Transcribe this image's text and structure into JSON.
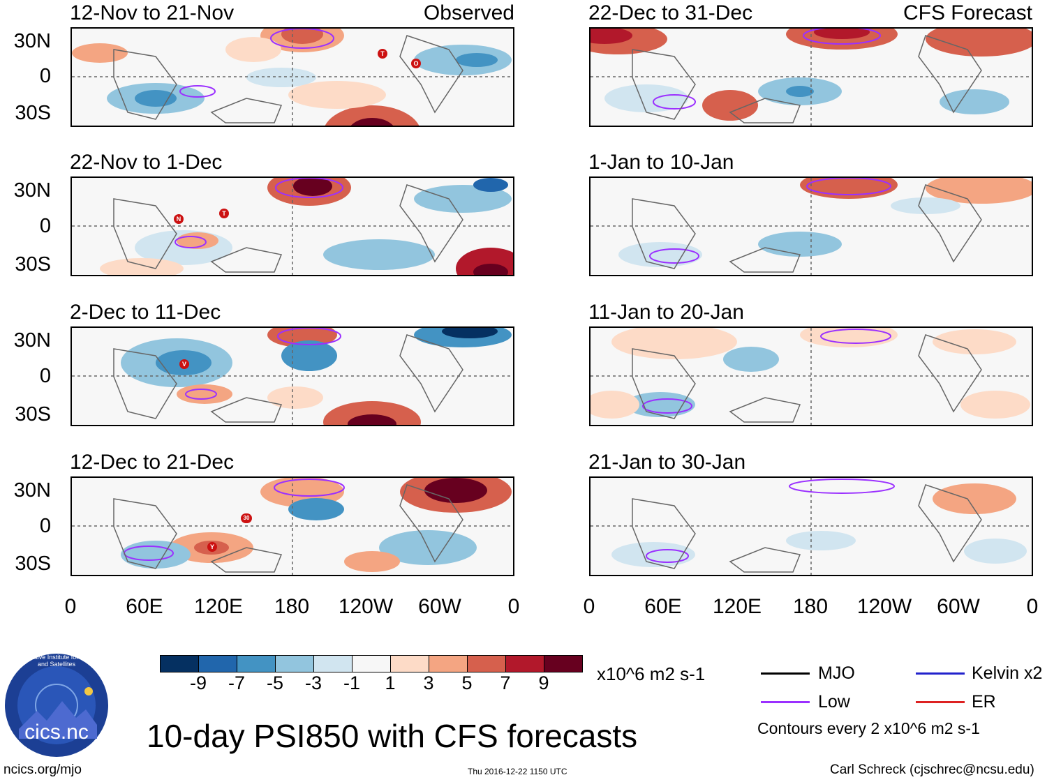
{
  "panel_labels": {
    "observed": "Observed",
    "forecast": "CFS Forecast"
  },
  "lat_labels": [
    "30N",
    "0",
    "30S"
  ],
  "lon_labels": [
    "0",
    "60E",
    "120E",
    "180",
    "120W",
    "60W",
    "0"
  ],
  "panels": [
    {
      "title": "12-Nov to 21-Nov",
      "storms": [
        "T",
        "O"
      ]
    },
    {
      "title": "22-Nov to 1-Dec",
      "storms": [
        "N",
        "T"
      ]
    },
    {
      "title": "2-Dec to 11-Dec",
      "storms": [
        "V"
      ]
    },
    {
      "title": "12-Dec to 21-Dec",
      "storms": [
        "30",
        "Y"
      ]
    },
    {
      "title": "22-Dec to 31-Dec",
      "storms": []
    },
    {
      "title": "1-Jan to 10-Jan",
      "storms": []
    },
    {
      "title": "11-Jan to 20-Jan",
      "storms": []
    },
    {
      "title": "21-Jan to 30-Jan",
      "storms": []
    }
  ],
  "colorbar": {
    "labels": [
      "-9",
      "-7",
      "-5",
      "-3",
      "-1",
      "1",
      "3",
      "5",
      "7",
      "9"
    ],
    "colors": [
      "#053061",
      "#2166ac",
      "#4393c3",
      "#92c5de",
      "#d1e5f0",
      "#f7f7f7",
      "#fddbc7",
      "#f4a582",
      "#d6604d",
      "#b2182b",
      "#67001f"
    ],
    "units": "x10^6 m2 s-1"
  },
  "legend": {
    "mjo": "MJO",
    "low": "Low",
    "kelvin": "Kelvin x2",
    "er": "ER",
    "contours": "Contours every 2 x10^6 m2 s-1",
    "colors": {
      "mjo": "#000000",
      "low": "#9b30ff",
      "kelvin": "#2222cc",
      "er": "#dd2222"
    }
  },
  "logo_text": "cics.nc",
  "logo_ring_text": "Cooperative Institute for Climate and Satellites",
  "main_title": "10-day PSI850 with CFS forecasts",
  "footer": {
    "left": "ncics.org/mjo",
    "center": "Thu 2016-12-22 1150 UTC",
    "right": "Carl Schreck (cjschrec@ncsu.edu)"
  }
}
